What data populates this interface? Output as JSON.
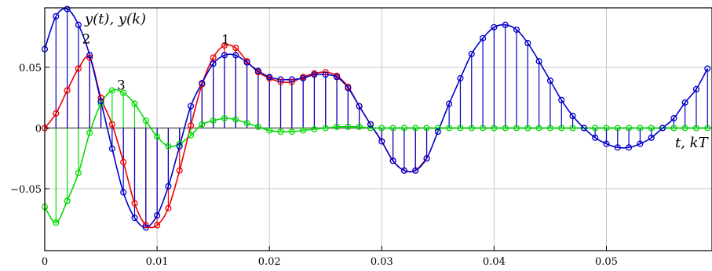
{
  "chart_data": {
    "type": "line",
    "title": "",
    "xlabel": "t, kT",
    "ylabel": "y(t), y(k)",
    "xlim": [
      0,
      0.0594
    ],
    "ylim": [
      -0.101,
      0.099
    ],
    "grid": true,
    "x_ticks": [
      0,
      0.01,
      0.02,
      0.03,
      0.04,
      0.05
    ],
    "x_tick_labels": [
      "0",
      "0.01",
      "0.02",
      "0.03",
      "0.04",
      "0.05"
    ],
    "y_ticks": [
      -0.05,
      0,
      0.05
    ],
    "y_tick_labels": [
      "−0.05",
      "0",
      "0.05"
    ],
    "sample_period": 0.001,
    "colors": {
      "series_1": "#ee0000",
      "series_2": "#0000cc",
      "series_3": "#00dd00"
    },
    "curve_labels": [
      {
        "text": "1",
        "x": 0.0161,
        "y": 0.069
      },
      {
        "text": "2",
        "x": 0.0037,
        "y": 0.0695
      },
      {
        "text": "3",
        "x": 0.0068,
        "y": 0.0315
      }
    ],
    "series": [
      {
        "name": "1",
        "color": "#ee0000",
        "points": [
          [
            0,
            0
          ],
          [
            0.001,
            0.012
          ],
          [
            0.002,
            0.031
          ],
          [
            0.003,
            0.049
          ],
          [
            0.004,
            0.058
          ],
          [
            0.005,
            0.025
          ],
          [
            0.006,
            0.003
          ],
          [
            0.007,
            -0.028
          ],
          [
            0.008,
            -0.062
          ],
          [
            0.009,
            -0.08
          ],
          [
            0.01,
            -0.08
          ],
          [
            0.011,
            -0.066
          ],
          [
            0.012,
            -0.035
          ],
          [
            0.013,
            0.002
          ],
          [
            0.014,
            0.036
          ],
          [
            0.015,
            0.058
          ],
          [
            0.016,
            0.068
          ],
          [
            0.017,
            0.066
          ],
          [
            0.018,
            0.055
          ],
          [
            0.019,
            0.046
          ],
          [
            0.02,
            0.041
          ],
          [
            0.021,
            0.038
          ],
          [
            0.022,
            0.038
          ],
          [
            0.023,
            0.042
          ],
          [
            0.024,
            0.045
          ],
          [
            0.025,
            0.046
          ],
          [
            0.026,
            0.043
          ],
          [
            0.027,
            0.034
          ],
          [
            0.028,
            0.018
          ],
          [
            0.029,
            0.003
          ],
          [
            0.03,
            -0.011
          ],
          [
            0.031,
            -0.027
          ],
          [
            0.032,
            -0.035
          ],
          [
            0.033,
            -0.035
          ],
          [
            0.034,
            -0.025
          ]
        ]
      },
      {
        "name": "2",
        "color": "#0000cc",
        "points": [
          [
            0,
            0.065
          ],
          [
            0.001,
            0.092
          ],
          [
            0.002,
            0.098
          ],
          [
            0.003,
            0.085
          ],
          [
            0.004,
            0.06
          ],
          [
            0.005,
            0.022
          ],
          [
            0.006,
            -0.017
          ],
          [
            0.007,
            -0.053
          ],
          [
            0.008,
            -0.074
          ],
          [
            0.009,
            -0.082
          ],
          [
            0.01,
            -0.072
          ],
          [
            0.011,
            -0.048
          ],
          [
            0.012,
            -0.015
          ],
          [
            0.013,
            0.018
          ],
          [
            0.014,
            0.037
          ],
          [
            0.015,
            0.053
          ],
          [
            0.016,
            0.06
          ],
          [
            0.017,
            0.06
          ],
          [
            0.018,
            0.054
          ],
          [
            0.019,
            0.047
          ],
          [
            0.02,
            0.042
          ],
          [
            0.021,
            0.04
          ],
          [
            0.022,
            0.04
          ],
          [
            0.023,
            0.041
          ],
          [
            0.024,
            0.044
          ],
          [
            0.025,
            0.044
          ],
          [
            0.026,
            0.042
          ],
          [
            0.027,
            0.033
          ],
          [
            0.028,
            0.018
          ],
          [
            0.029,
            0.003
          ],
          [
            0.03,
            -0.011
          ],
          [
            0.031,
            -0.027
          ],
          [
            0.032,
            -0.035
          ],
          [
            0.033,
            -0.035
          ],
          [
            0.034,
            -0.025
          ],
          [
            0.035,
            -0.003
          ],
          [
            0.036,
            0.02
          ],
          [
            0.037,
            0.041
          ],
          [
            0.038,
            0.061
          ],
          [
            0.039,
            0.074
          ],
          [
            0.04,
            0.083
          ],
          [
            0.041,
            0.085
          ],
          [
            0.042,
            0.081
          ],
          [
            0.043,
            0.07
          ],
          [
            0.044,
            0.055
          ],
          [
            0.045,
            0.039
          ],
          [
            0.046,
            0.023
          ],
          [
            0.047,
            0.01
          ],
          [
            0.048,
            0.0
          ],
          [
            0.049,
            -0.008
          ],
          [
            0.05,
            -0.013
          ],
          [
            0.051,
            -0.016
          ],
          [
            0.052,
            -0.016
          ],
          [
            0.053,
            -0.013
          ],
          [
            0.054,
            -0.008
          ],
          [
            0.055,
            0.0
          ],
          [
            0.056,
            0.008
          ],
          [
            0.057,
            0.021
          ],
          [
            0.058,
            0.032
          ],
          [
            0.059,
            0.049
          ]
        ]
      },
      {
        "name": "3",
        "color": "#00dd00",
        "points": [
          [
            0,
            -0.065
          ],
          [
            0.001,
            -0.078
          ],
          [
            0.002,
            -0.06
          ],
          [
            0.003,
            -0.037
          ],
          [
            0.004,
            -0.004
          ],
          [
            0.005,
            0.02
          ],
          [
            0.006,
            0.031
          ],
          [
            0.007,
            0.029
          ],
          [
            0.008,
            0.02
          ],
          [
            0.009,
            0.006
          ],
          [
            0.01,
            -0.007
          ],
          [
            0.011,
            -0.015
          ],
          [
            0.012,
            -0.013
          ],
          [
            0.013,
            -0.006
          ],
          [
            0.014,
            0.003
          ],
          [
            0.015,
            0.006
          ],
          [
            0.016,
            0.008
          ],
          [
            0.017,
            0.007
          ],
          [
            0.018,
            0.004
          ],
          [
            0.019,
            0.001
          ],
          [
            0.02,
            -0.002
          ],
          [
            0.021,
            -0.003
          ],
          [
            0.022,
            -0.003
          ],
          [
            0.023,
            -0.002
          ],
          [
            0.024,
            -0.001
          ],
          [
            0.025,
            0.0
          ],
          [
            0.026,
            0.001
          ],
          [
            0.027,
            0.001
          ],
          [
            0.028,
            0.001
          ],
          [
            0.029,
            0.0
          ],
          [
            0.03,
            0.0
          ],
          [
            0.031,
            0.0
          ],
          [
            0.032,
            0.0
          ],
          [
            0.033,
            0.0
          ],
          [
            0.034,
            0.0
          ],
          [
            0.035,
            0.0
          ],
          [
            0.036,
            0.0
          ],
          [
            0.037,
            0.0
          ],
          [
            0.038,
            0.0
          ],
          [
            0.039,
            0.0
          ],
          [
            0.04,
            0.0
          ],
          [
            0.041,
            0.0
          ],
          [
            0.042,
            0.0
          ],
          [
            0.043,
            0.0
          ],
          [
            0.044,
            0.0
          ],
          [
            0.045,
            0.0
          ],
          [
            0.046,
            0.0
          ],
          [
            0.047,
            0.0
          ],
          [
            0.048,
            0.0
          ],
          [
            0.049,
            0.0
          ],
          [
            0.05,
            0.0
          ],
          [
            0.051,
            0.0
          ],
          [
            0.052,
            0.0
          ],
          [
            0.053,
            0.0
          ],
          [
            0.054,
            0.0
          ],
          [
            0.055,
            0.0
          ],
          [
            0.056,
            0.0
          ],
          [
            0.057,
            0.0
          ],
          [
            0.058,
            0.0
          ],
          [
            0.059,
            0.0
          ]
        ]
      }
    ]
  }
}
